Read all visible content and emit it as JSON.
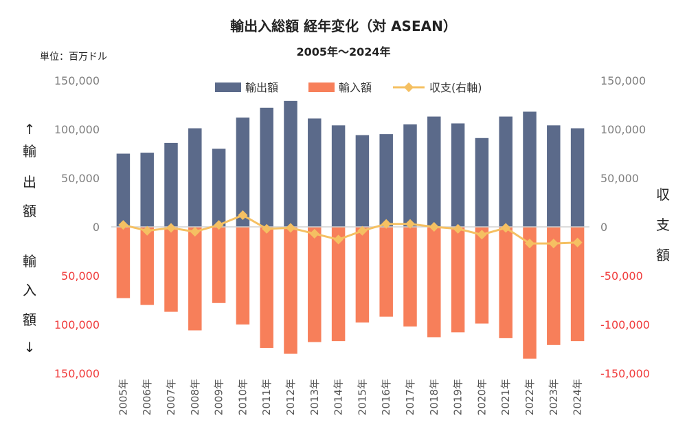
{
  "chart_data": {
    "type": "bar",
    "title": "輸出入総額 経年変化（対 ASEAN）",
    "subtitle": "2005年～2024年",
    "unit_label": "単位：百万ドル",
    "left_axis_label_top": [
      "↑",
      "輸",
      "出",
      "額"
    ],
    "left_axis_label_bottom": [
      "輸",
      "入",
      "額",
      "↓"
    ],
    "right_axis_label": [
      "収",
      "支",
      "額"
    ],
    "categories": [
      "2005年",
      "2006年",
      "2007年",
      "2008年",
      "2009年",
      "2010年",
      "2011年",
      "2012年",
      "2013年",
      "2014年",
      "2015年",
      "2016年",
      "2017年",
      "2018年",
      "2019年",
      "2020年",
      "2021年",
      "2022年",
      "2023年",
      "2024年"
    ],
    "series": [
      {
        "name": "輸出額",
        "type": "bar",
        "color": "#5b6a8a",
        "values": [
          75000,
          76000,
          86000,
          101000,
          80000,
          112000,
          122000,
          129000,
          111000,
          104000,
          94000,
          95000,
          105000,
          113000,
          106000,
          91000,
          113000,
          118000,
          104000,
          101000
        ]
      },
      {
        "name": "輸入額",
        "type": "bar",
        "color": "#f77f5a",
        "values": [
          73000,
          80000,
          87000,
          106000,
          78000,
          100000,
          124000,
          130000,
          118000,
          117000,
          98000,
          92000,
          102000,
          113000,
          108000,
          99000,
          114000,
          135000,
          121000,
          117000
        ]
      },
      {
        "name": "収支(右軸)",
        "type": "line",
        "color": "#f5c062",
        "values": [
          2000,
          -4000,
          -1000,
          -5000,
          2000,
          12000,
          -2000,
          -1000,
          -7000,
          -13000,
          -4000,
          3000,
          3000,
          0,
          -2000,
          -8000,
          -1000,
          -17000,
          -17000,
          -16000
        ]
      }
    ],
    "left_axis": {
      "ylim": [
        -150000,
        150000
      ],
      "ticks": [
        150000,
        100000,
        50000,
        0,
        -50000,
        -100000,
        -150000
      ],
      "tick_labels": [
        "150,000",
        "100,000",
        "50,000",
        "0",
        "50,000",
        "100,000",
        "150,000"
      ],
      "tick_colors": [
        "#7f7f7f",
        "#7f7f7f",
        "#7f7f7f",
        "#7f7f7f",
        "#f03c3c",
        "#f03c3c",
        "#f03c3c"
      ]
    },
    "right_axis": {
      "ylim": [
        -150000,
        150000
      ],
      "ticks": [
        150000,
        100000,
        50000,
        0,
        -50000,
        -100000,
        -150000
      ],
      "tick_labels": [
        "150,000",
        "100,000",
        "50,000",
        "0",
        "-50,000",
        "-100,000",
        "-150,000"
      ],
      "tick_colors": [
        "#7f7f7f",
        "#7f7f7f",
        "#7f7f7f",
        "#7f7f7f",
        "#f03c3c",
        "#f03c3c",
        "#f03c3c"
      ]
    },
    "legend_position": "top",
    "grid": false
  }
}
